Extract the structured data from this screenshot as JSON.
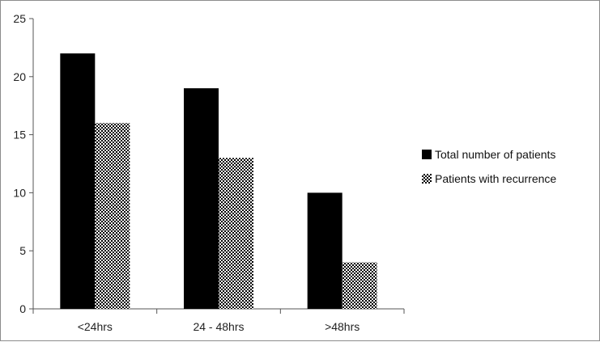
{
  "chart_data": {
    "type": "bar",
    "categories": [
      "<24hrs",
      "24 - 48hrs",
      ">48hrs"
    ],
    "series": [
      {
        "name": "Total number of patients",
        "values": [
          22,
          19,
          10
        ],
        "fill": "solid",
        "color": "#000000"
      },
      {
        "name": "Patients with recurrence",
        "values": [
          16,
          13,
          4
        ],
        "fill": "checkered",
        "color": "#000000"
      }
    ],
    "ylim": [
      0,
      25
    ],
    "yticks": [
      0,
      5,
      10,
      15,
      20,
      25
    ],
    "title": "",
    "xlabel": "",
    "ylabel": "",
    "grid": false,
    "legend_position": "right"
  }
}
